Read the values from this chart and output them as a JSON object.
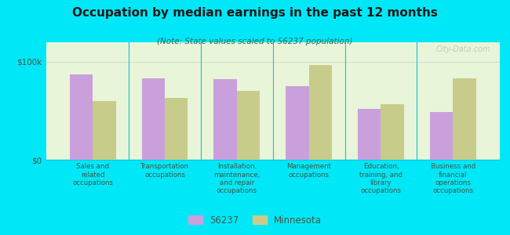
{
  "title": "Occupation by median earnings in the past 12 months",
  "subtitle": "(Note: State values scaled to 56237 population)",
  "categories": [
    "Sales and\nrelated\noccupations",
    "Transportation\noccupations",
    "Installation,\nmaintenance,\nand repair\noccupations",
    "Management\noccupations",
    "Education,\ntraining, and\nlibrary\noccupations",
    "Business and\nfinancial\noperations\noccupations"
  ],
  "values_56237": [
    87000,
    83000,
    82000,
    75000,
    52000,
    49000
  ],
  "values_mn": [
    60000,
    63000,
    70000,
    97000,
    57000,
    83000
  ],
  "color_56237": "#c9a0dc",
  "color_mn": "#c8cc8a",
  "bar_width": 0.32,
  "ylim": [
    0,
    120000
  ],
  "yticks": [
    0,
    100000
  ],
  "ytick_labels": [
    "$0",
    "$100k"
  ],
  "legend_label_56237": "56237",
  "legend_label_mn": "Minnesota",
  "chart_bg_top": "#f5fff0",
  "chart_bg_bottom": "#e8f5d8",
  "outer_bg": "#00e8f8",
  "watermark": "City-Data.com",
  "title_color": "#1a1a1a",
  "subtitle_color": "#336655",
  "axis_label_color": "#445544",
  "tick_color": "#445544",
  "separator_color": "#00c8e0",
  "watermark_color": "#b0c8b0"
}
